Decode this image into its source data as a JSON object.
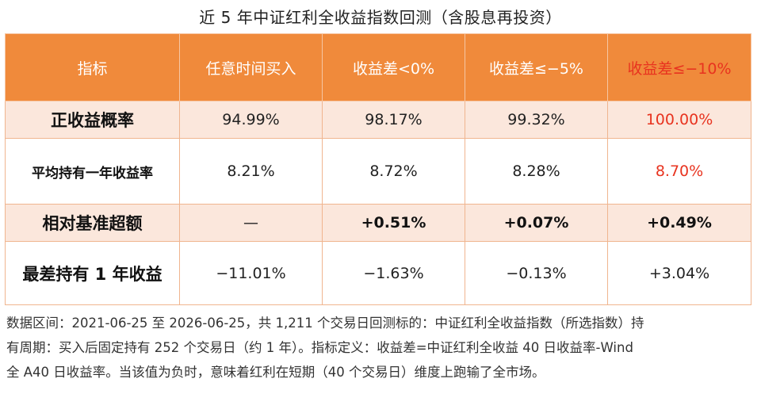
{
  "title": "近 5 年中证红利全收益指数回测（含股息再投资）",
  "table": {
    "headers": [
      "指标",
      "任意时间买入",
      "收益差<0%",
      "收益差≤−5%",
      "收益差≤−10%"
    ],
    "highlight_color": "#e8331f",
    "header_color": "#f08a3b",
    "rows": [
      {
        "label": "正收益概率",
        "values": [
          "94.99%",
          "98.17%",
          "99.32%",
          "100.00%"
        ]
      },
      {
        "label": "平均持有一年收益率",
        "values": [
          "8.21%",
          "8.72%",
          "8.28%",
          "8.70%"
        ]
      },
      {
        "label": "相对基准超额",
        "values": [
          "—",
          "+0.51%",
          "+0.07%",
          "+0.49%"
        ]
      },
      {
        "label": "最差持有 1 年收益",
        "values": [
          "−11.01%",
          "−1.63%",
          "−0.13%",
          "+3.04%"
        ]
      }
    ]
  },
  "note": {
    "line1": "数据区间：2021-06-25 至 2026-06-25，共 1,211 个交易日回测标的：中证红利全收益指数（所选指数）持",
    "line2": "有周期：买入后固定持有 252 个交易日（约 1 年）。指标定义：收益差=中证红利全收益 40 日收益率-Wind",
    "line3": "全 A40 日收益率。当该值为负时，意味着红利在短期（40 个交易日）维度上跑输了全市场。"
  }
}
